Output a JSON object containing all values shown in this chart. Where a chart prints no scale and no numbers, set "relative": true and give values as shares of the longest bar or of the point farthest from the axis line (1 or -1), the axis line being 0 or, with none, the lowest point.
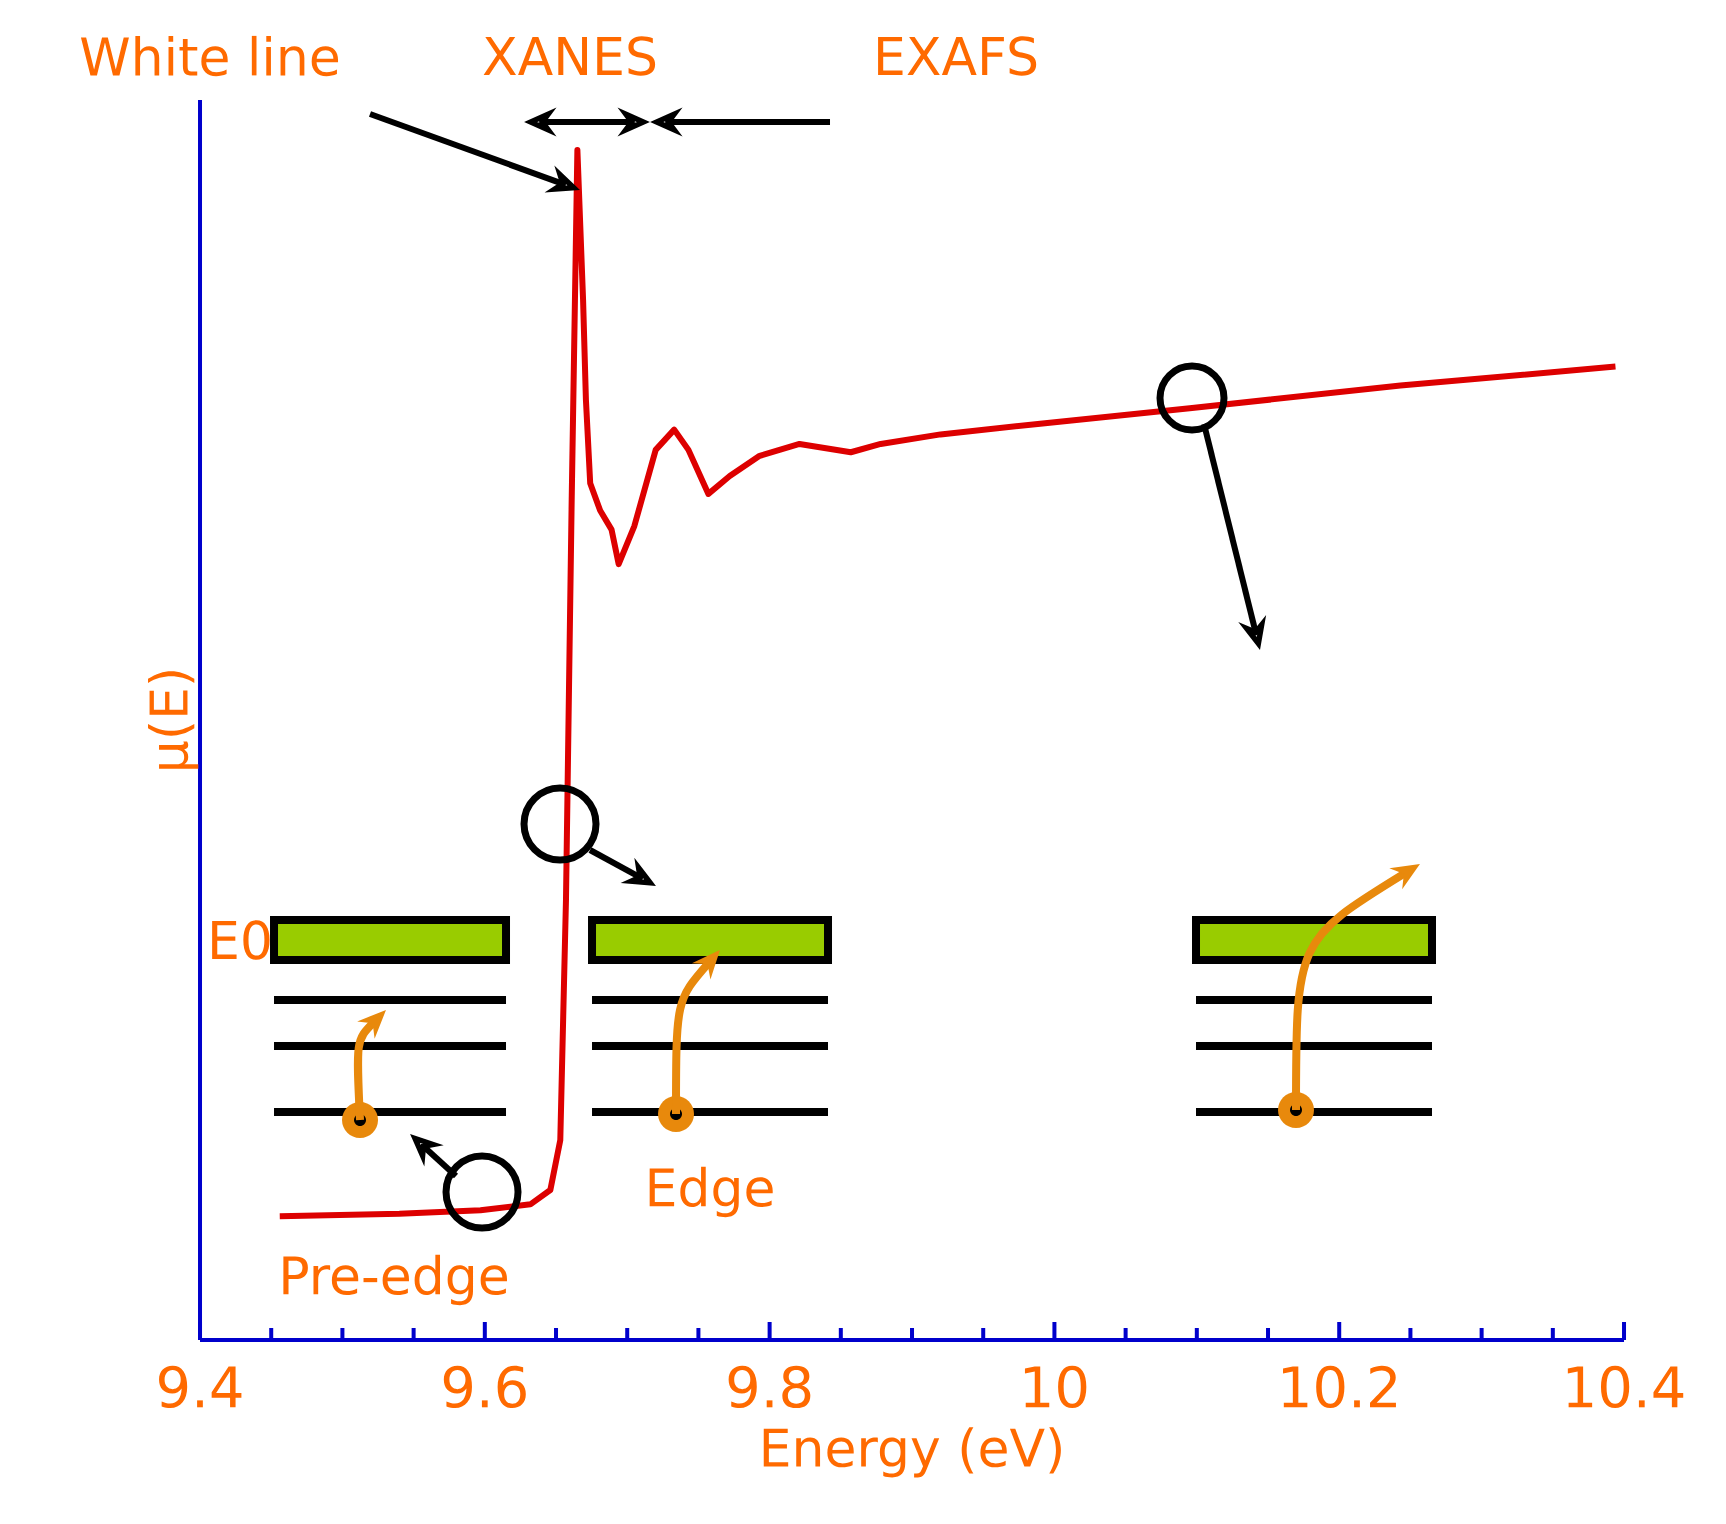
{
  "chart_data": {
    "type": "line",
    "relative": true,
    "xlabel": "Energy (eV)",
    "ylabel": "μ(E)",
    "annotations": [
      "White line",
      "XANES",
      "EXAFS",
      "E0",
      "Edge",
      "Pre-edge"
    ],
    "xlim": [
      9.4,
      10.4
    ],
    "xticks": [
      9.4,
      {
        "value": 9.45,
        "label": null
      },
      {
        "value": 9.5,
        "label": null
      },
      {
        "value": 9.55,
        "label": null
      },
      9.6,
      {
        "value": 9.65,
        "label": null
      },
      {
        "value": 9.7,
        "label": null
      },
      {
        "value": 9.75,
        "label": null
      },
      9.8,
      {
        "value": 9.85,
        "label": null
      },
      {
        "value": 9.9,
        "label": null
      },
      {
        "value": 9.95,
        "label": null
      },
      10,
      {
        "value": 10.05,
        "label": null
      },
      {
        "value": 10.1,
        "label": null
      },
      {
        "value": 10.15,
        "label": null
      },
      10.2,
      {
        "value": 10.25,
        "label": null
      },
      {
        "value": 10.3,
        "label": null
      },
      {
        "value": 10.35,
        "label": null
      },
      10.4
    ],
    "grid": false,
    "marker": "none",
    "line_style": "solid",
    "series": [
      {
        "color": "#dd0000",
        "x": [
          9.456,
          9.54,
          9.597,
          9.632,
          9.646,
          9.653,
          9.657,
          9.661,
          9.665,
          9.669,
          9.671,
          9.674,
          9.681,
          9.689,
          9.694,
          9.705,
          9.72,
          9.733,
          9.743,
          9.757,
          9.772,
          9.793,
          9.821,
          9.857,
          9.878,
          9.92,
          9.99,
          10.095,
          10.243,
          10.394
        ],
        "values": [
          0.104,
          0.106,
          0.109,
          0.114,
          0.126,
          0.168,
          0.37,
          0.706,
          1.0,
          0.874,
          0.79,
          0.72,
          0.697,
          0.681,
          0.652,
          0.684,
          0.748,
          0.765,
          0.748,
          0.711,
          0.726,
          0.743,
          0.753,
          0.746,
          0.753,
          0.761,
          0.77,
          0.783,
          0.802,
          0.818
        ]
      }
    ]
  }
}
